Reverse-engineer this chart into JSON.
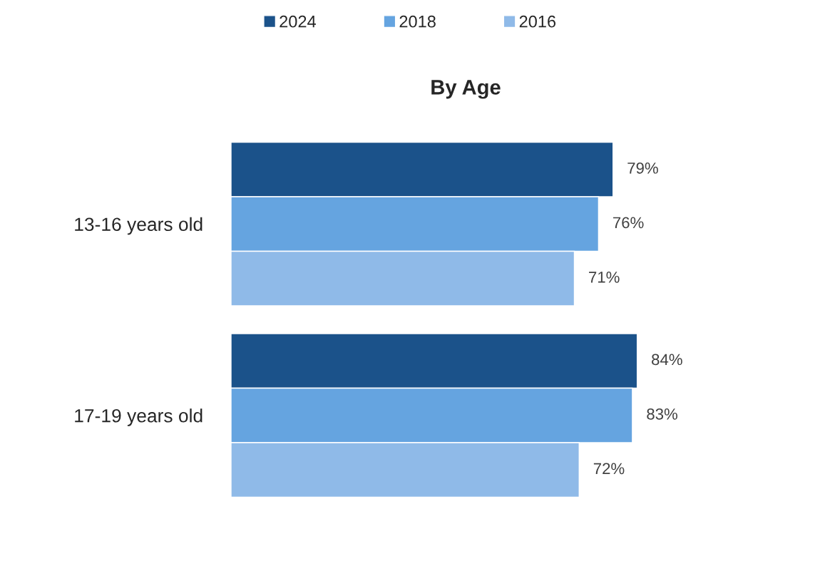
{
  "chart_data": {
    "type": "bar",
    "orientation": "horizontal",
    "title": "By Age",
    "categories": [
      "13-16 years old",
      "17-19 years old"
    ],
    "series": [
      {
        "name": "2024",
        "color": "#1b528a",
        "values": [
          79,
          84
        ],
        "value_labels": [
          "79%",
          "84%"
        ]
      },
      {
        "name": "2018",
        "color": "#65a4e0",
        "values": [
          76,
          83
        ],
        "value_labels": [
          "76%",
          "83%"
        ]
      },
      {
        "name": "2016",
        "color": "#8fbae8",
        "values": [
          71,
          72
        ],
        "value_labels": [
          "71%",
          "72%"
        ]
      }
    ],
    "tick_labels": "y",
    "grid": false,
    "legend": "top"
  }
}
